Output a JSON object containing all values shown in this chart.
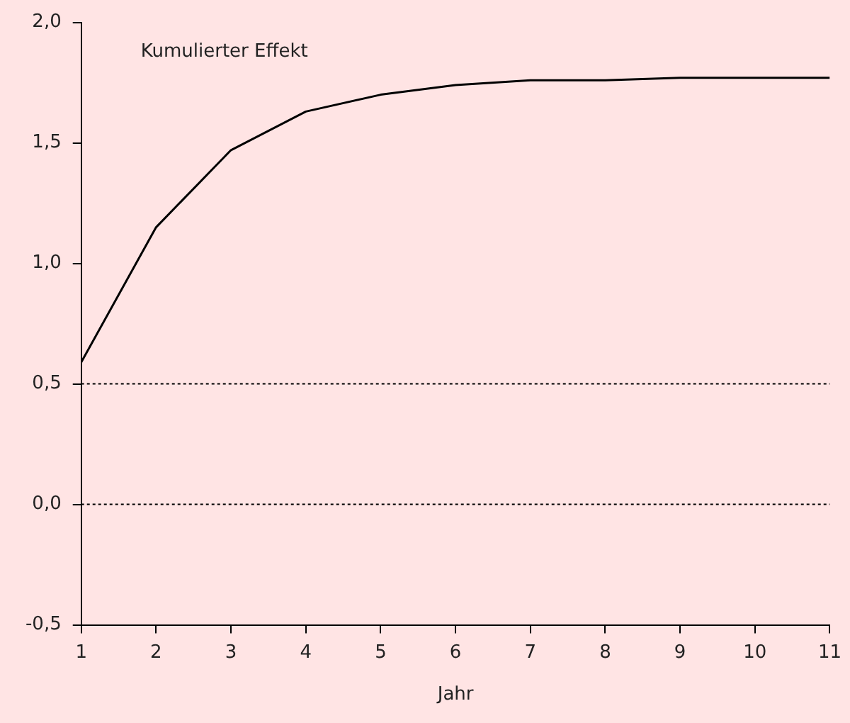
{
  "chart_data": {
    "type": "line",
    "xlabel": "Jahr",
    "annotations": [
      "Kumulierter Effekt"
    ],
    "x": [
      1,
      2,
      3,
      4,
      5,
      6,
      7,
      8,
      9,
      10,
      11
    ],
    "series": [
      {
        "color": "#000000",
        "values": [
          0.59,
          1.15,
          1.47,
          1.63,
          1.7,
          1.74,
          1.76,
          1.76,
          1.77,
          1.77,
          1.77
        ]
      }
    ],
    "xlim": [
      1,
      11
    ],
    "xticks": [
      1,
      2,
      3,
      4,
      5,
      6,
      7,
      8,
      9,
      10,
      11
    ],
    "ylim": [
      -0.5,
      2.0
    ],
    "yticks": [
      {
        "value": -0.5,
        "label": "-0,5"
      },
      {
        "value": 0,
        "label": "0,0"
      },
      {
        "value": 0.5,
        "label": "0,5"
      },
      {
        "value": 1,
        "label": "1,0"
      },
      {
        "value": 1.5,
        "label": "1,5"
      },
      {
        "value": 2,
        "label": "2,0"
      }
    ],
    "ref_lines": [
      {
        "axis": "y",
        "value": 0.5,
        "color": "#000000",
        "line_style": "dotted"
      },
      {
        "axis": "y",
        "value": 0,
        "color": "#000000",
        "line_style": "dotted"
      }
    ],
    "grid": false,
    "legend": false,
    "marker": "none",
    "line_style": "solid"
  }
}
